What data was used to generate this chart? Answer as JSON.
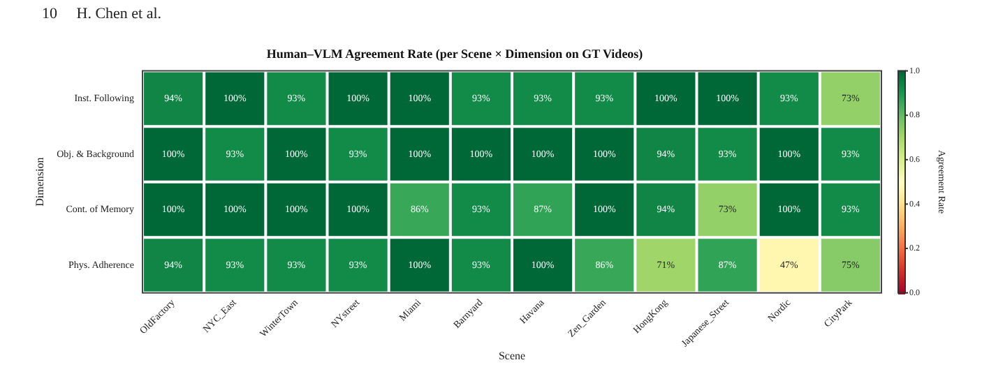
{
  "chart_data": {
    "type": "heatmap",
    "title": "Human–VLM Agreement Rate (per Scene × Dimension on GT Videos)",
    "xlabel": "Scene",
    "ylabel": "Dimension",
    "clabel": "Agreement Rate",
    "annotations": [
      "10     H. Chen et al."
    ],
    "categories": [
      "OldFactory",
      "NYC_East",
      "WinterTown",
      "NYstreet",
      "Miami",
      "Barnyard",
      "Havana",
      "Zen_Garden",
      "HongKong",
      "Japanese_Street",
      "Nordic",
      "CityPark"
    ],
    "y_categories": [
      "Inst. Following",
      "Obj. & Background",
      "Cont. of Memory",
      "Phys. Adherence"
    ],
    "cells": [
      [
        0.94,
        1.0,
        0.93,
        1.0,
        1.0,
        0.93,
        0.93,
        0.93,
        1.0,
        1.0,
        0.93,
        0.73
      ],
      [
        1.0,
        0.93,
        1.0,
        0.93,
        1.0,
        1.0,
        1.0,
        1.0,
        0.94,
        0.93,
        1.0,
        0.93
      ],
      [
        1.0,
        1.0,
        1.0,
        1.0,
        0.86,
        0.93,
        0.87,
        1.0,
        0.94,
        0.73,
        1.0,
        0.93
      ],
      [
        0.94,
        0.93,
        0.93,
        0.93,
        1.0,
        0.93,
        1.0,
        0.86,
        0.71,
        0.87,
        0.47,
        0.75
      ]
    ],
    "cell_labels": [
      [
        "94%",
        "100%",
        "93%",
        "100%",
        "100%",
        "93%",
        "93%",
        "93%",
        "100%",
        "100%",
        "93%",
        "73%"
      ],
      [
        "100%",
        "93%",
        "100%",
        "93%",
        "100%",
        "100%",
        "100%",
        "100%",
        "94%",
        "93%",
        "100%",
        "93%"
      ],
      [
        "100%",
        "100%",
        "100%",
        "100%",
        "86%",
        "93%",
        "87%",
        "100%",
        "94%",
        "73%",
        "100%",
        "93%"
      ],
      [
        "94%",
        "93%",
        "93%",
        "93%",
        "100%",
        "93%",
        "100%",
        "86%",
        "71%",
        "87%",
        "47%",
        "75%"
      ]
    ],
    "clim": [
      0,
      1
    ],
    "cticks": [
      {
        "value": 0,
        "label": "0.0"
      },
      {
        "value": 0.2,
        "label": "0.2"
      },
      {
        "value": 0.4,
        "label": "0.4"
      },
      {
        "value": 0.6,
        "label": "0.6"
      },
      {
        "value": 0.8,
        "label": "0.8"
      },
      {
        "value": 1,
        "label": "1.0"
      }
    ],
    "grid": false
  }
}
